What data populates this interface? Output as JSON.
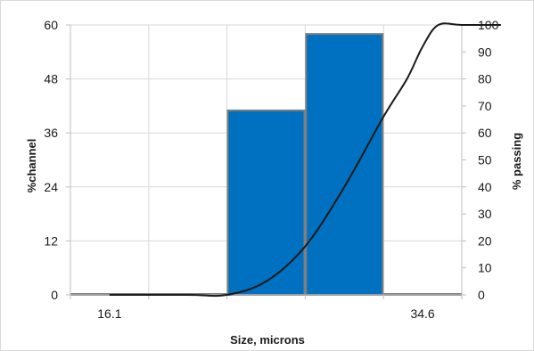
{
  "chart_data": {
    "type": "bar",
    "title": "",
    "xlabel": "Size, microns",
    "ylabel_left": "%channel",
    "ylabel_right": "% passing",
    "x_tick_labels": [
      "16.1",
      "34.6"
    ],
    "y_left": {
      "lim": [
        0,
        60
      ],
      "ticks": [
        "0",
        "12",
        "24",
        "36",
        "48",
        "60"
      ]
    },
    "y_right": {
      "lim": [
        0,
        100
      ],
      "ticks": [
        "0",
        "10",
        "20",
        "30",
        "40",
        "50",
        "60",
        "70",
        "80",
        "90",
        "100"
      ]
    },
    "grid": true,
    "legend": "none",
    "bars": {
      "name": "%channel",
      "axis": "left",
      "color": "#0070c0",
      "edge_color": "#7f7f7f",
      "values": [
        0,
        0,
        41,
        58,
        0
      ]
    },
    "cumulative_line": {
      "name": "% passing",
      "axis": "right",
      "color": "#1a1a1a",
      "points": [
        [
          0.5,
          0
        ],
        [
          1.5,
          0
        ],
        [
          2.0,
          0
        ],
        [
          2.5,
          5
        ],
        [
          3.0,
          18
        ],
        [
          3.5,
          40
        ],
        [
          4.0,
          66
        ],
        [
          4.3,
          80
        ],
        [
          4.5,
          92
        ],
        [
          4.7,
          100
        ],
        [
          5.0,
          100
        ],
        [
          5.5,
          100
        ]
      ]
    }
  }
}
